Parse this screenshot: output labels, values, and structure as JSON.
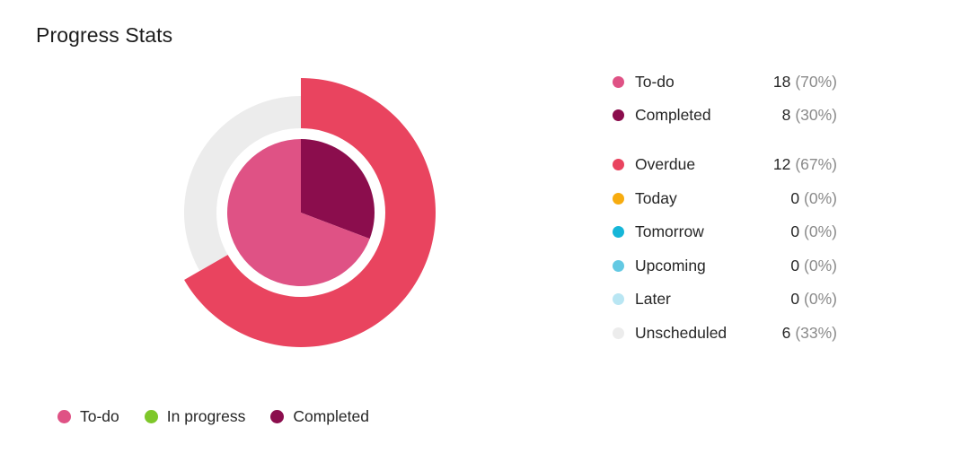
{
  "title": "Progress Stats",
  "stats": [
    {
      "label": "To-do",
      "count": "18",
      "pct": "(70%)",
      "color": "#df5285"
    },
    {
      "label": "Completed",
      "count": "8",
      "pct": "(30%)",
      "color": "#8b0d4d"
    },
    {
      "label": "Overdue",
      "count": "12",
      "pct": "(67%)",
      "color": "#e9445f"
    },
    {
      "label": "Today",
      "count": "0",
      "pct": "(0%)",
      "color": "#f7ac0f"
    },
    {
      "label": "Tomorrow",
      "count": "0",
      "pct": "(0%)",
      "color": "#16b6d8"
    },
    {
      "label": "Upcoming",
      "count": "0",
      "pct": "(0%)",
      "color": "#63c9e3"
    },
    {
      "label": "Later",
      "count": "0",
      "pct": "(0%)",
      "color": "#b9e6f3"
    },
    {
      "label": "Unscheduled",
      "count": "6",
      "pct": "(33%)",
      "color": "#ececec"
    }
  ],
  "legend": [
    {
      "label": "To-do",
      "color": "#df5285"
    },
    {
      "label": "In progress",
      "color": "#7ec72a"
    },
    {
      "label": "Completed",
      "color": "#8b0d4d"
    }
  ],
  "chart_data": [
    {
      "type": "pie",
      "title": "",
      "categories": [
        "To-do",
        "In progress",
        "Completed"
      ],
      "values": [
        18,
        0,
        8
      ],
      "colors": [
        "#df5285",
        "#7ec72a",
        "#8b0d4d"
      ]
    },
    {
      "type": "pie",
      "title": "",
      "categories": [
        "Overdue",
        "Today",
        "Tomorrow",
        "Upcoming",
        "Later",
        "Unscheduled"
      ],
      "values": [
        12,
        0,
        0,
        0,
        0,
        6
      ],
      "colors": [
        "#e9445f",
        "#f7ac0f",
        "#16b6d8",
        "#63c9e3",
        "#b9e6f3",
        "#ececec"
      ]
    }
  ]
}
